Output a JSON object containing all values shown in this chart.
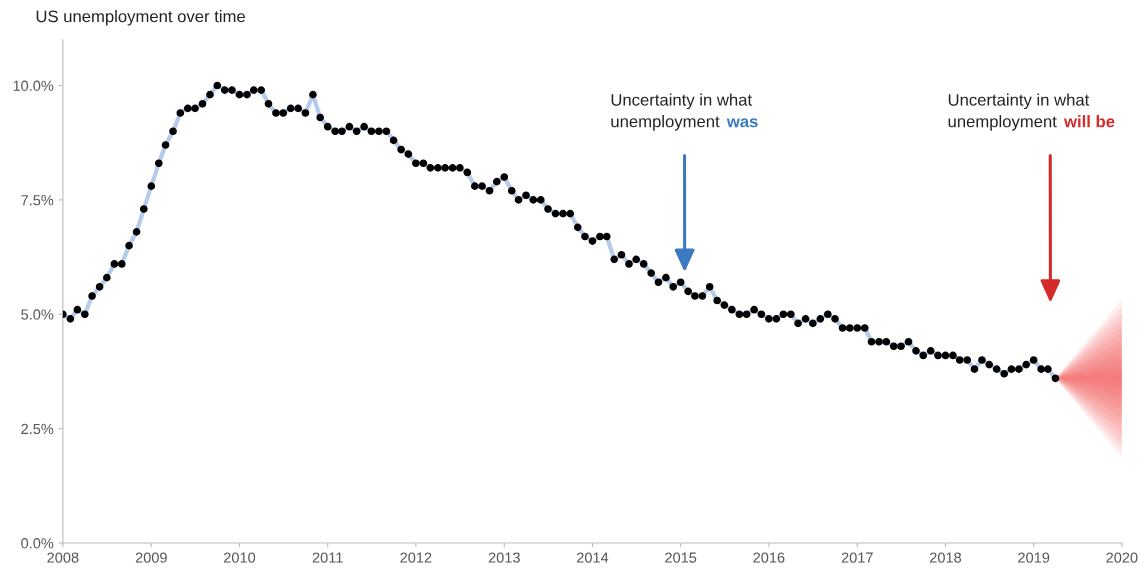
{
  "chart_data": {
    "type": "line",
    "title": "US unemployment over time",
    "x": [
      "2008-01",
      "2008-02",
      "2008-03",
      "2008-04",
      "2008-05",
      "2008-06",
      "2008-07",
      "2008-08",
      "2008-09",
      "2008-10",
      "2008-11",
      "2008-12",
      "2009-01",
      "2009-02",
      "2009-03",
      "2009-04",
      "2009-05",
      "2009-06",
      "2009-07",
      "2009-08",
      "2009-09",
      "2009-10",
      "2009-11",
      "2009-12",
      "2010-01",
      "2010-02",
      "2010-03",
      "2010-04",
      "2010-05",
      "2010-06",
      "2010-07",
      "2010-08",
      "2010-09",
      "2010-10",
      "2010-11",
      "2010-12",
      "2011-01",
      "2011-02",
      "2011-03",
      "2011-04",
      "2011-05",
      "2011-06",
      "2011-07",
      "2011-08",
      "2011-09",
      "2011-10",
      "2011-11",
      "2011-12",
      "2012-01",
      "2012-02",
      "2012-03",
      "2012-04",
      "2012-05",
      "2012-06",
      "2012-07",
      "2012-08",
      "2012-09",
      "2012-10",
      "2012-11",
      "2012-12",
      "2013-01",
      "2013-02",
      "2013-03",
      "2013-04",
      "2013-05",
      "2013-06",
      "2013-07",
      "2013-08",
      "2013-09",
      "2013-10",
      "2013-11",
      "2013-12",
      "2014-01",
      "2014-02",
      "2014-03",
      "2014-04",
      "2014-05",
      "2014-06",
      "2014-07",
      "2014-08",
      "2014-09",
      "2014-10",
      "2014-11",
      "2014-12",
      "2015-01",
      "2015-02",
      "2015-03",
      "2015-04",
      "2015-05",
      "2015-06",
      "2015-07",
      "2015-08",
      "2015-09",
      "2015-10",
      "2015-11",
      "2015-12",
      "2016-01",
      "2016-02",
      "2016-03",
      "2016-04",
      "2016-05",
      "2016-06",
      "2016-07",
      "2016-08",
      "2016-09",
      "2016-10",
      "2016-11",
      "2016-12",
      "2017-01",
      "2017-02",
      "2017-03",
      "2017-04",
      "2017-05",
      "2017-06",
      "2017-07",
      "2017-08",
      "2017-09",
      "2017-10",
      "2017-11",
      "2017-12",
      "2018-01",
      "2018-02",
      "2018-03",
      "2018-04",
      "2018-05",
      "2018-06",
      "2018-07",
      "2018-08",
      "2018-09",
      "2018-10",
      "2018-11",
      "2018-12",
      "2019-01",
      "2019-02",
      "2019-03",
      "2019-04"
    ],
    "series": [
      {
        "color": "#000000",
        "values": [
          5.0,
          4.9,
          5.1,
          5.0,
          5.4,
          5.6,
          5.8,
          6.1,
          6.1,
          6.5,
          6.8,
          7.3,
          7.8,
          8.3,
          8.7,
          9.0,
          9.4,
          9.5,
          9.5,
          9.6,
          9.8,
          10.0,
          9.9,
          9.9,
          9.8,
          9.8,
          9.9,
          9.9,
          9.6,
          9.4,
          9.4,
          9.5,
          9.5,
          9.4,
          9.8,
          9.3,
          9.1,
          9.0,
          9.0,
          9.1,
          9.0,
          9.1,
          9.0,
          9.0,
          9.0,
          8.8,
          8.6,
          8.5,
          8.3,
          8.3,
          8.2,
          8.2,
          8.2,
          8.2,
          8.2,
          8.1,
          7.8,
          7.8,
          7.7,
          7.9,
          8.0,
          7.7,
          7.5,
          7.6,
          7.5,
          7.5,
          7.3,
          7.2,
          7.2,
          7.2,
          6.9,
          6.7,
          6.6,
          6.7,
          6.7,
          6.2,
          6.3,
          6.1,
          6.2,
          6.1,
          5.9,
          5.7,
          5.8,
          5.6,
          5.7,
          5.5,
          5.4,
          5.4,
          5.6,
          5.3,
          5.2,
          5.1,
          5.0,
          5.0,
          5.1,
          5.0,
          4.9,
          4.9,
          5.0,
          5.0,
          4.8,
          4.9,
          4.8,
          4.9,
          5.0,
          4.9,
          4.7,
          4.7,
          4.7,
          4.7,
          4.4,
          4.4,
          4.4,
          4.3,
          4.3,
          4.4,
          4.2,
          4.1,
          4.2,
          4.1,
          4.1,
          4.1,
          4.0,
          4.0,
          3.8,
          4.0,
          3.9,
          3.8,
          3.7,
          3.8,
          3.8,
          3.9,
          4.0,
          3.8,
          3.8,
          3.6
        ]
      }
    ],
    "xlim": [
      "2008-01",
      "2020-01"
    ],
    "xticks": [
      "2008",
      "2009",
      "2010",
      "2011",
      "2012",
      "2013",
      "2014",
      "2015",
      "2016",
      "2017",
      "2018",
      "2019",
      "2020"
    ],
    "ylim": [
      0,
      11
    ],
    "yticks": [
      {
        "value": 0,
        "label": "0.0%"
      },
      {
        "value": 2.5,
        "label": "2.5%"
      },
      {
        "value": 5,
        "label": "5.0%"
      },
      {
        "value": 7.5,
        "label": "7.5%"
      },
      {
        "value": 10,
        "label": "10.0%"
      }
    ],
    "marker": "circle",
    "line_style": "solid",
    "grid": false,
    "annotations": [
      "Uncertainty in what\nunemployment",
      "was",
      "Uncertainty in what\nunemployment",
      "will be"
    ]
  }
}
